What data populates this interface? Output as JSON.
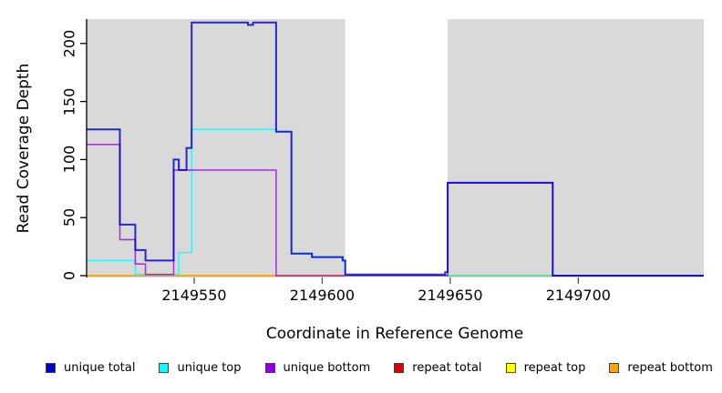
{
  "figure": {
    "x_axis_label": "Coordinate in Reference Genome",
    "y_axis_label": "Read Coverage Depth"
  },
  "chart_data": {
    "type": "line",
    "subtype": "step",
    "title": "",
    "xlabel": "Coordinate in Reference Genome",
    "ylabel": "Read Coverage Depth",
    "x_range": [
      2149508,
      2149749
    ],
    "y_range": [
      0,
      221
    ],
    "x_ticks": [
      2149550,
      2149600,
      2149650,
      2149700
    ],
    "y_ticks": [
      0,
      50,
      100,
      150,
      200
    ],
    "grid": false,
    "legend_position": "bottom",
    "plot_background": "#ffffff",
    "shaded_region_color": "#d9d9d9",
    "shaded_regions": [
      {
        "x0": 2149508,
        "x1": 2149609
      },
      {
        "x0": 2149649,
        "x1": 2149749
      }
    ],
    "draw_order": [
      "repeat total",
      "repeat top",
      "repeat bottom",
      "unique top",
      "unique bottom",
      "unique total"
    ],
    "legend_order": [
      "unique total",
      "unique top",
      "unique bottom",
      "repeat total",
      "repeat top",
      "repeat bottom"
    ],
    "series": [
      {
        "name": "repeat total",
        "color": "#e00000",
        "width": 1.6,
        "opacity": 1,
        "points": [
          [
            2149508,
            0
          ],
          [
            2149749,
            0
          ]
        ]
      },
      {
        "name": "repeat top",
        "color": "#ffff00",
        "width": 1.6,
        "opacity": 1,
        "points": [
          [
            2149508,
            0
          ],
          [
            2149749,
            0
          ]
        ]
      },
      {
        "name": "repeat bottom",
        "color": "#ffa500",
        "width": 1.8,
        "opacity": 1,
        "points": [
          [
            2149508,
            0
          ],
          [
            2149749,
            0
          ]
        ]
      },
      {
        "name": "unique top",
        "color": "#00ffff",
        "width": 1.6,
        "opacity": 0.75,
        "points": [
          [
            2149508,
            13
          ],
          [
            2149527,
            1
          ],
          [
            2149544,
            20
          ],
          [
            2149549,
            126
          ],
          [
            2149582,
            124
          ],
          [
            2149588,
            19
          ],
          [
            2149596,
            16
          ],
          [
            2149608,
            13
          ],
          [
            2149609,
            0
          ],
          [
            2149749,
            0
          ]
        ]
      },
      {
        "name": "unique bottom",
        "color": "#9400d3",
        "width": 1.6,
        "opacity": 0.75,
        "points": [
          [
            2149508,
            113
          ],
          [
            2149521,
            31
          ],
          [
            2149527,
            10
          ],
          [
            2149531,
            1
          ],
          [
            2149542,
            91
          ],
          [
            2149582,
            0
          ],
          [
            2149649,
            80
          ],
          [
            2149690,
            0
          ],
          [
            2149749,
            0
          ]
        ]
      },
      {
        "name": "unique total",
        "color": "#0000cd",
        "width": 2,
        "opacity": 0.82,
        "points": [
          [
            2149508,
            126
          ],
          [
            2149521,
            44
          ],
          [
            2149527,
            22
          ],
          [
            2149531,
            13
          ],
          [
            2149542,
            100
          ],
          [
            2149544,
            91
          ],
          [
            2149547,
            110
          ],
          [
            2149549,
            218
          ],
          [
            2149571,
            216
          ],
          [
            2149573,
            218
          ],
          [
            2149582,
            124
          ],
          [
            2149588,
            19
          ],
          [
            2149596,
            16
          ],
          [
            2149608,
            13
          ],
          [
            2149609,
            1
          ],
          [
            2149648,
            3
          ],
          [
            2149649,
            80
          ],
          [
            2149690,
            0
          ],
          [
            2149749,
            0
          ]
        ]
      }
    ]
  }
}
